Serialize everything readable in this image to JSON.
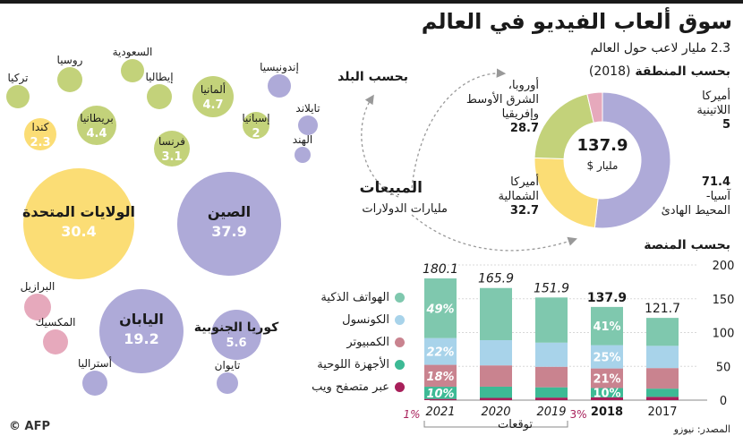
{
  "title": "سوق ألعاب الفيديو في العالم",
  "subtitle": "2.3 مليار لاعب حول العالم",
  "sales": {
    "label": "المبيعات",
    "unit": "مليارات الدولارات"
  },
  "by_country": {
    "label": "بحسب البلد"
  },
  "by_region": {
    "label": "بحسب المنطقة",
    "year": "(2018)"
  },
  "by_platform": {
    "label": "بحسب المنصة"
  },
  "forecasts": "توقعات",
  "source": "المصدر: نيوزو",
  "credit": "© AFP",
  "colors": {
    "green": "#c3d27a",
    "yellow": "#fbdd75",
    "lavender": "#aeaad8",
    "pink": "#e6a9bc",
    "smartphones": "#7fc8ae",
    "consoles": "#a8d3ea",
    "pc": "#c9838f",
    "tablets": "#3dba95",
    "web": "#a8205a"
  },
  "chart_data": [
    {
      "type": "bubble",
      "title": "بحسب البلد",
      "unit": "مليارات الدولارات",
      "countries": [
        {
          "name": "الصين",
          "value": 37.9,
          "label": "37.9",
          "color": "lavender"
        },
        {
          "name": "الولايات المتحدة",
          "value": 30.4,
          "label": "30.4",
          "color": "yellow"
        },
        {
          "name": "اليابان",
          "value": 19.2,
          "label": "19.2",
          "color": "lavender"
        },
        {
          "name": "كوريا الجنوبية",
          "value": 5.6,
          "label": "5.6",
          "color": "lavender"
        },
        {
          "name": "ألمانيا",
          "value": 4.7,
          "label": "4.7",
          "color": "green"
        },
        {
          "name": "بريطانيا",
          "value": 4.4,
          "label": "4.4",
          "color": "green"
        },
        {
          "name": "فرنسا",
          "value": 3.1,
          "label": "3.1",
          "color": "green"
        },
        {
          "name": "كندا",
          "value": 2.3,
          "label": "2.3",
          "color": "yellow"
        },
        {
          "name": "إسبانيا",
          "value": 2,
          "label": "2",
          "color": "green"
        },
        {
          "name": "روسيا",
          "value": null,
          "label": "",
          "color": "green"
        },
        {
          "name": "تركيا",
          "value": null,
          "label": "",
          "color": "green"
        },
        {
          "name": "السعودية",
          "value": null,
          "label": "",
          "color": "green"
        },
        {
          "name": "إيطاليا",
          "value": null,
          "label": "",
          "color": "green"
        },
        {
          "name": "إندونيسيا",
          "value": null,
          "label": "",
          "color": "lavender"
        },
        {
          "name": "تايلاند",
          "value": null,
          "label": "",
          "color": "lavender"
        },
        {
          "name": "الهند",
          "value": null,
          "label": "",
          "color": "lavender"
        },
        {
          "name": "تايوان",
          "value": null,
          "label": "",
          "color": "lavender"
        },
        {
          "name": "أستراليا",
          "value": null,
          "label": "",
          "color": "lavender"
        },
        {
          "name": "البرازيل",
          "value": null,
          "label": "",
          "color": "pink"
        },
        {
          "name": "المكسيك",
          "value": null,
          "label": "",
          "color": "pink"
        }
      ]
    },
    {
      "type": "pie",
      "title": "بحسب المنطقة (2018)",
      "total": {
        "value": "137.9",
        "unit": "مليار $"
      },
      "slices": [
        {
          "name": "آسيا-المحيط الهادئ",
          "value": 71.4,
          "color": "lavender"
        },
        {
          "name": "أميركا الشمالية",
          "value": 32.7,
          "color": "yellow"
        },
        {
          "name": "أوروبا، الشرق الأوسط وإفريقيا",
          "value": 28.7,
          "color": "green"
        },
        {
          "name": "أميركا اللاتينية",
          "value": 5,
          "color": "pink"
        }
      ],
      "labels": {
        "asia": {
          "value": "71.4",
          "l1": "آسيا-",
          "l2": "المحيط الهادئ"
        },
        "na": {
          "l1": "أميركا",
          "l2": "الشمالية",
          "value": "32.7"
        },
        "emea": {
          "l1": "أوروبا،",
          "l2": "الشرق الأوسط",
          "l3": "وإفريقيا",
          "value": "28.7"
        },
        "latam": {
          "l1": "أميركا",
          "l2": "اللاتينية",
          "value": "5"
        }
      }
    },
    {
      "type": "bar",
      "title": "بحسب المنصة",
      "categories": [
        "2017",
        "2018",
        "2019",
        "2020",
        "2021"
      ],
      "totals": [
        121.7,
        137.9,
        151.9,
        165.9,
        180.1
      ],
      "ylim": [
        0,
        200
      ],
      "yticks": [
        0,
        50,
        100,
        150,
        200
      ],
      "segments": [
        "web",
        "tablets",
        "pc",
        "consoles",
        "smartphones"
      ],
      "shares": [
        {
          "web": 0.04,
          "tablets": 0.1,
          "pc": 0.25,
          "consoles": 0.27,
          "smartphones": 0.34
        },
        {
          "web": 0.03,
          "tablets": 0.1,
          "pc": 0.21,
          "consoles": 0.25,
          "smartphones": 0.41
        },
        {
          "web": 0.025,
          "tablets": 0.1,
          "pc": 0.2,
          "consoles": 0.235,
          "smartphones": 0.44
        },
        {
          "web": 0.02,
          "tablets": 0.1,
          "pc": 0.19,
          "consoles": 0.225,
          "smartphones": 0.465
        },
        {
          "web": 0.01,
          "tablets": 0.1,
          "pc": 0.18,
          "consoles": 0.22,
          "smartphones": 0.49
        }
      ],
      "annotations": {
        "2018": {
          "smartphones": "41%",
          "consoles": "25%",
          "pc": "21%",
          "tablets": "10%",
          "web": "3%"
        },
        "2021": {
          "smartphones": "49%",
          "consoles": "22%",
          "pc": "18%",
          "tablets": "10%",
          "web": "1%"
        }
      },
      "legend": [
        {
          "key": "smartphones",
          "label": "الهواتف الذكية"
        },
        {
          "key": "consoles",
          "label": "الكونسول"
        },
        {
          "key": "pc",
          "label": "الكمبيوتر"
        },
        {
          "key": "tablets",
          "label": "الأجهزة اللوحية"
        },
        {
          "key": "web",
          "label": "عبر متصفح ويب"
        }
      ]
    }
  ]
}
